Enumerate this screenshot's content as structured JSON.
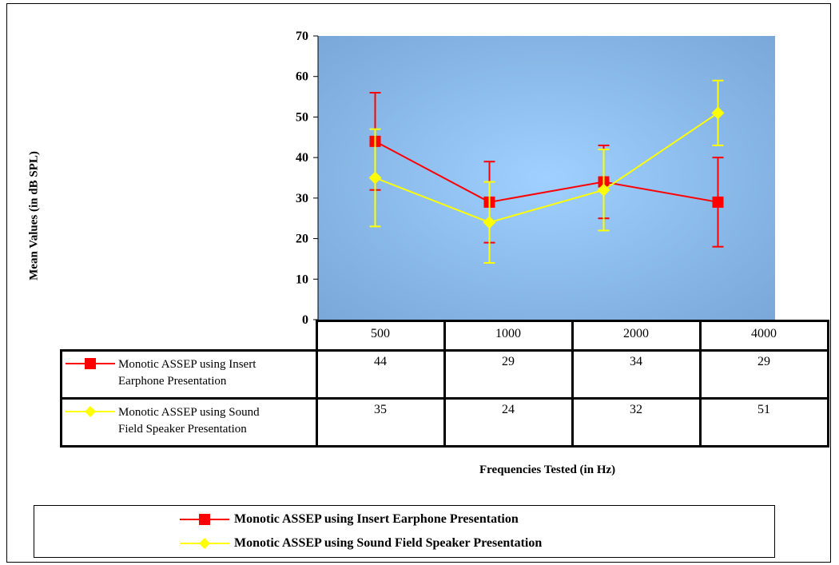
{
  "chart_data": {
    "type": "line",
    "categories": [
      "500",
      "1000",
      "2000",
      "4000"
    ],
    "series": [
      {
        "name": "Monotic ASSEP using Insert Earphone Presentation",
        "values": [
          44,
          29,
          34,
          29
        ],
        "error_high": [
          56,
          39,
          43,
          40
        ],
        "error_low": [
          32,
          19,
          25,
          18
        ],
        "color": "#ff0000",
        "marker": "square"
      },
      {
        "name": "Monotic ASSEP using Sound Field Speaker Presentation",
        "values": [
          35,
          24,
          32,
          51
        ],
        "error_high": [
          47,
          34,
          42,
          59
        ],
        "error_low": [
          23,
          14,
          22,
          43
        ],
        "color": "#ffff00",
        "marker": "diamond"
      }
    ],
    "title": "",
    "xlabel": "Frequencies Tested (in Hz)",
    "ylabel": "Mean Values (in dB SPL)",
    "ylim": [
      0,
      70
    ],
    "yticks": [
      "0",
      "10",
      "20",
      "30",
      "40",
      "50",
      "60",
      "70"
    ],
    "grid": false,
    "legend_position": "bottom",
    "data_table": true,
    "plot_background": "#8fbbe6"
  },
  "table": {
    "row1_label": [
      "Monotic ASSEP using Insert",
      "Earphone Presentation"
    ],
    "row2_label": [
      "Monotic ASSEP using Sound",
      "Field Speaker Presentation"
    ]
  }
}
